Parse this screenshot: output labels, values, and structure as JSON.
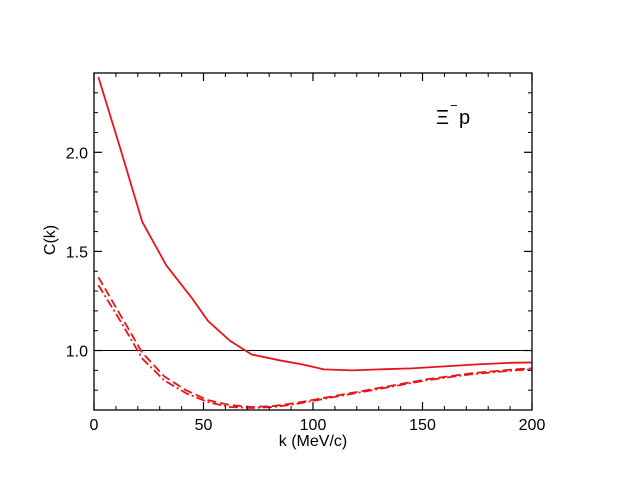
{
  "chart_data": {
    "type": "line",
    "title": "",
    "annotation": {
      "base": "Ξ",
      "superscript": "−",
      "subscript_text": "p"
    },
    "xlabel": "k (MeV/c)",
    "ylabel": "C(k)",
    "xlim": [
      0,
      200
    ],
    "ylim": [
      0.7,
      2.4
    ],
    "xticks": [
      0,
      50,
      100,
      150,
      200
    ],
    "xtick_labels": [
      "0",
      "50",
      "100",
      "150",
      "200"
    ],
    "yticks": [
      1.0,
      1.5,
      2.0
    ],
    "ytick_labels": [
      "1.0",
      "1.5",
      "2.0"
    ],
    "reference_line": 1.0,
    "colors": {
      "series": "#e8141a",
      "axis": "#000000",
      "reference": "#000000"
    },
    "series": [
      {
        "name": "solid",
        "dash": "solid",
        "x": [
          2,
          12,
          22,
          33,
          45,
          52,
          62,
          72,
          85,
          95,
          105,
          118,
          130,
          145,
          160,
          175,
          190,
          200
        ],
        "y": [
          2.38,
          2.02,
          1.65,
          1.43,
          1.26,
          1.15,
          1.05,
          0.98,
          0.95,
          0.93,
          0.905,
          0.9,
          0.905,
          0.91,
          0.92,
          0.93,
          0.938,
          0.94
        ]
      },
      {
        "name": "dashed",
        "dash": "dashed",
        "x": [
          2,
          12,
          22,
          32,
          42,
          52,
          62,
          72,
          82,
          92,
          102,
          112,
          122,
          132,
          142,
          152,
          162,
          172,
          182,
          192,
          200
        ],
        "y": [
          1.37,
          1.18,
          0.99,
          0.87,
          0.8,
          0.75,
          0.725,
          0.715,
          0.72,
          0.735,
          0.755,
          0.775,
          0.795,
          0.815,
          0.835,
          0.855,
          0.87,
          0.885,
          0.895,
          0.905,
          0.91
        ]
      },
      {
        "name": "dash-dot",
        "dash": "dashdot",
        "x": [
          2,
          12,
          22,
          32,
          42,
          52,
          62,
          72,
          82,
          92,
          102,
          112,
          122,
          132,
          142,
          152,
          162,
          172,
          182,
          192,
          200
        ],
        "y": [
          1.33,
          1.15,
          0.96,
          0.85,
          0.785,
          0.74,
          0.715,
          0.71,
          0.715,
          0.73,
          0.75,
          0.77,
          0.79,
          0.81,
          0.83,
          0.85,
          0.865,
          0.88,
          0.89,
          0.9,
          0.905
        ]
      }
    ]
  }
}
